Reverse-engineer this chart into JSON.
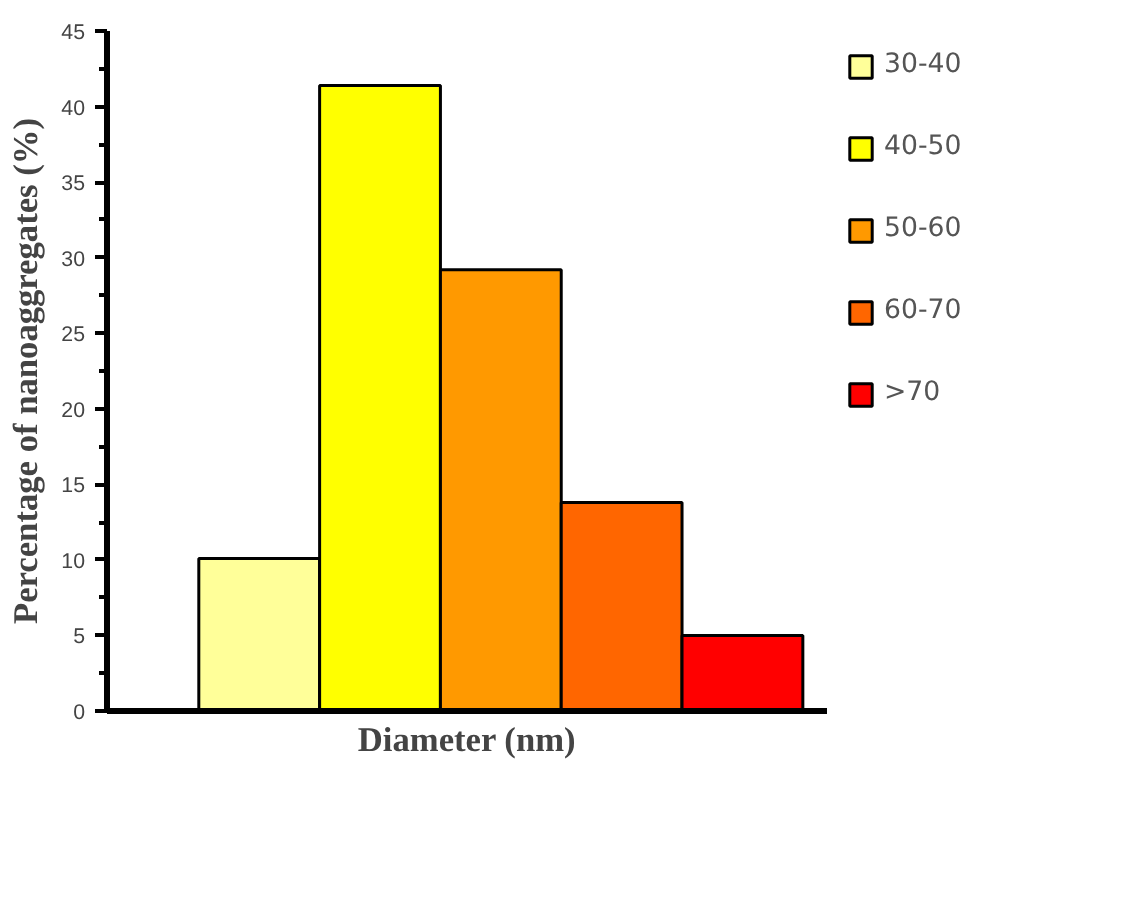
{
  "chart_data": {
    "type": "bar",
    "xlabel": "Diameter (nm)",
    "ylabel": "Percentage of nanoaggregates (%)",
    "categories": [
      null,
      null,
      null,
      null,
      null,
      null
    ],
    "series": [
      {
        "name": "30-40",
        "color": "#ffff99",
        "values": [
          null,
          10.1,
          null,
          null,
          null,
          null
        ]
      },
      {
        "name": "40-50",
        "color": "#ffff00",
        "values": [
          null,
          null,
          41.4,
          null,
          null,
          null
        ]
      },
      {
        "name": "50-60",
        "color": "#ff9900",
        "values": [
          null,
          null,
          null,
          29.2,
          null,
          null
        ]
      },
      {
        "name": "60-70",
        "color": "#ff6600",
        "values": [
          null,
          null,
          null,
          null,
          13.8,
          null
        ]
      },
      {
        "name": ">70",
        "color": "#ff0000",
        "values": [
          null,
          null,
          null,
          null,
          null,
          5.0
        ]
      }
    ],
    "ylim": [
      0,
      45
    ],
    "yticks": [
      0,
      5,
      10,
      15,
      20,
      25,
      30,
      35,
      40,
      45
    ],
    "grid": false,
    "legend": "right"
  }
}
